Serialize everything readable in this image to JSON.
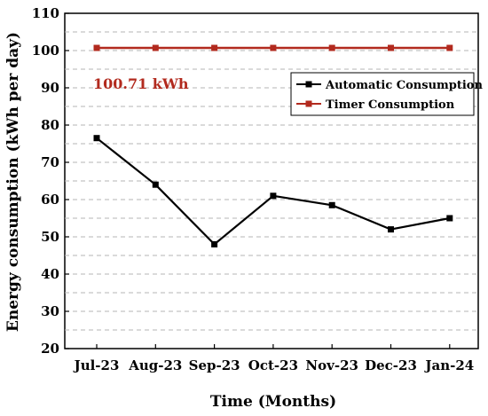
{
  "chart_data": {
    "type": "line",
    "xlabel": "Time (Months)",
    "ylabel": "Energy consumption (kWh per day)",
    "ylim": [
      20,
      110
    ],
    "yticks": [
      20,
      30,
      40,
      50,
      60,
      70,
      80,
      90,
      100,
      110
    ],
    "minor_grid": [
      25,
      35,
      45,
      55,
      65,
      75,
      85,
      95,
      105
    ],
    "categories": [
      "Jul-23",
      "Aug-23",
      "Sep-23",
      "Oct-23",
      "Nov-23",
      "Dec-23",
      "Jan-24"
    ],
    "series": [
      {
        "name": "Automatic Consumption",
        "color": "#000000",
        "values": [
          76.5,
          64,
          48,
          61,
          58.5,
          52,
          55
        ]
      },
      {
        "name": "Timer Consumption",
        "color": "#b22a1e",
        "values": [
          100.71,
          100.71,
          100.71,
          100.71,
          100.71,
          100.71,
          100.71
        ]
      }
    ],
    "annotation": {
      "text": "100.71 kWh",
      "color": "#b22a1e"
    },
    "grid": "dashed-horizontal",
    "legend": "top-right"
  }
}
